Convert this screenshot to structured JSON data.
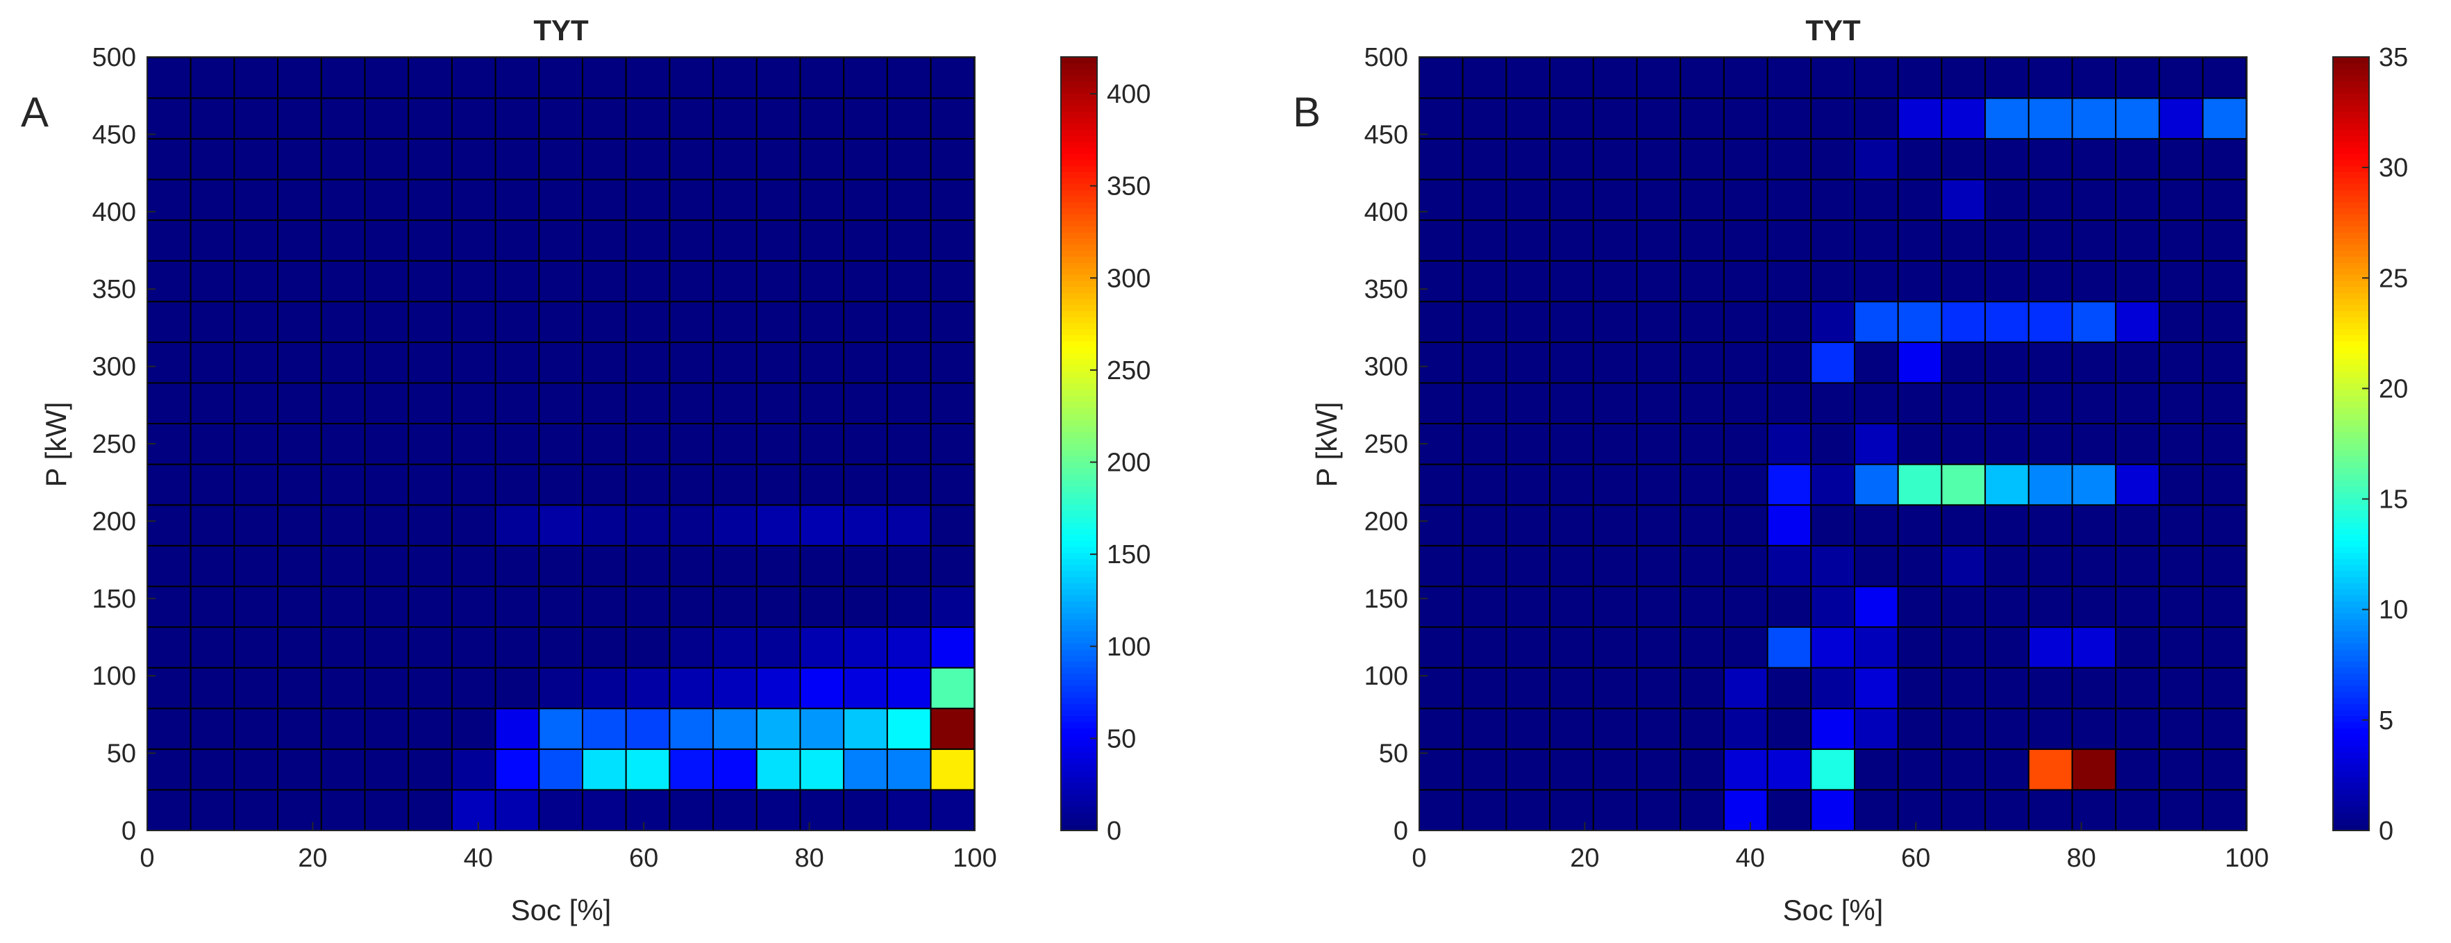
{
  "chart_data": [
    {
      "type": "heatmap",
      "panel_label": "A",
      "title": "TYT",
      "xlabel": "Soc [%]",
      "ylabel": "P [kW]",
      "xlim": [
        0,
        100
      ],
      "ylim": [
        0,
        500
      ],
      "xticks": [
        0,
        20,
        40,
        60,
        80,
        100
      ],
      "yticks": [
        0,
        50,
        100,
        150,
        200,
        250,
        300,
        350,
        400,
        450,
        500
      ],
      "x_bin_width": 5.26,
      "y_bin_width": 26.3,
      "rows": 19,
      "cols": 19,
      "colorbar": {
        "colormap": "jet",
        "min": 0,
        "max": 420,
        "ticks": [
          0,
          50,
          100,
          150,
          200,
          250,
          300,
          350,
          400
        ]
      },
      "grid": true,
      "row_order": "bottom-to-top",
      "values": [
        [
          0,
          0,
          0,
          0,
          0,
          0,
          0,
          25,
          20,
          5,
          5,
          3,
          3,
          3,
          3,
          2,
          2,
          5,
          5
        ],
        [
          0,
          0,
          0,
          0,
          0,
          0,
          0,
          10,
          55,
          85,
          145,
          150,
          60,
          55,
          145,
          150,
          105,
          105,
          270
        ],
        [
          0,
          0,
          0,
          0,
          0,
          0,
          0,
          0,
          45,
          95,
          85,
          80,
          95,
          105,
          125,
          115,
          135,
          155,
          420
        ],
        [
          0,
          0,
          0,
          0,
          0,
          0,
          0,
          0,
          0,
          5,
          10,
          15,
          20,
          25,
          35,
          50,
          40,
          45,
          190
        ],
        [
          0,
          0,
          0,
          0,
          0,
          0,
          0,
          0,
          0,
          0,
          0,
          0,
          5,
          10,
          10,
          20,
          25,
          30,
          50
        ],
        [
          0,
          0,
          0,
          0,
          0,
          0,
          0,
          0,
          0,
          0,
          0,
          0,
          0,
          0,
          0,
          0,
          0,
          3,
          8
        ],
        [
          0,
          0,
          0,
          0,
          0,
          0,
          0,
          0,
          0,
          0,
          0,
          0,
          0,
          0,
          0,
          0,
          0,
          0,
          0
        ],
        [
          0,
          0,
          0,
          0,
          0,
          0,
          0,
          0,
          10,
          15,
          8,
          5,
          5,
          12,
          18,
          20,
          18,
          15,
          0
        ],
        [
          0,
          0,
          0,
          0,
          0,
          0,
          0,
          0,
          0,
          0,
          0,
          0,
          0,
          0,
          0,
          0,
          0,
          0,
          0
        ],
        [
          0,
          0,
          0,
          0,
          0,
          0,
          0,
          0,
          0,
          0,
          0,
          0,
          0,
          0,
          0,
          0,
          0,
          0,
          0
        ],
        [
          0,
          0,
          0,
          0,
          0,
          0,
          0,
          0,
          0,
          0,
          0,
          0,
          0,
          0,
          0,
          0,
          0,
          0,
          0
        ],
        [
          0,
          0,
          0,
          0,
          0,
          0,
          0,
          0,
          0,
          0,
          0,
          0,
          0,
          0,
          0,
          0,
          0,
          0,
          0
        ],
        [
          0,
          0,
          0,
          0,
          0,
          0,
          0,
          0,
          0,
          0,
          0,
          0,
          0,
          0,
          0,
          0,
          0,
          0,
          0
        ],
        [
          0,
          0,
          0,
          0,
          0,
          0,
          0,
          0,
          0,
          0,
          0,
          0,
          0,
          0,
          0,
          0,
          0,
          0,
          0
        ],
        [
          0,
          0,
          0,
          0,
          0,
          0,
          0,
          0,
          0,
          0,
          0,
          0,
          0,
          0,
          0,
          0,
          0,
          0,
          0
        ],
        [
          0,
          0,
          0,
          0,
          0,
          0,
          0,
          0,
          0,
          0,
          0,
          0,
          0,
          0,
          0,
          0,
          0,
          0,
          0
        ],
        [
          0,
          0,
          0,
          0,
          0,
          0,
          0,
          0,
          0,
          0,
          0,
          0,
          0,
          0,
          0,
          0,
          0,
          0,
          0
        ],
        [
          0,
          0,
          0,
          0,
          0,
          0,
          0,
          0,
          0,
          0,
          0,
          0,
          0,
          0,
          0,
          0,
          0,
          0,
          0
        ],
        [
          0,
          0,
          0,
          0,
          0,
          0,
          0,
          0,
          0,
          0,
          0,
          0,
          0,
          0,
          0,
          0,
          0,
          0,
          0
        ]
      ]
    },
    {
      "type": "heatmap",
      "panel_label": "B",
      "title": "TYT",
      "xlabel": "Soc [%]",
      "ylabel": "P [kW]",
      "xlim": [
        0,
        100
      ],
      "ylim": [
        0,
        500
      ],
      "xticks": [
        0,
        20,
        40,
        60,
        80,
        100
      ],
      "yticks": [
        0,
        50,
        100,
        150,
        200,
        250,
        300,
        350,
        400,
        450,
        500
      ],
      "x_bin_width": 5.26,
      "y_bin_width": 26.3,
      "rows": 19,
      "cols": 19,
      "colorbar": {
        "colormap": "jet",
        "min": 0,
        "max": 35,
        "ticks": [
          0,
          5,
          10,
          15,
          20,
          25,
          30,
          35
        ]
      },
      "grid": true,
      "row_order": "bottom-to-top",
      "values": [
        [
          0,
          0,
          0,
          0,
          0,
          0,
          0,
          4,
          0,
          4,
          0,
          0,
          0,
          0,
          0,
          0,
          0,
          0,
          0
        ],
        [
          0,
          0,
          0,
          0,
          0,
          0,
          0,
          3,
          3,
          14,
          0,
          0,
          0,
          0,
          28,
          35,
          0,
          0,
          0
        ],
        [
          0,
          0,
          0,
          0,
          0,
          0,
          0,
          1,
          0,
          4,
          2,
          0,
          0,
          0,
          0,
          0,
          0,
          0,
          0
        ],
        [
          0,
          0,
          0,
          0,
          0,
          0,
          0,
          2,
          0,
          1,
          3,
          0,
          0,
          0,
          0,
          0,
          0,
          0,
          0
        ],
        [
          0,
          0,
          0,
          0,
          0,
          0,
          0,
          0,
          7,
          3,
          2,
          0,
          0,
          0,
          3,
          3,
          0,
          0,
          0
        ],
        [
          0,
          0,
          0,
          0,
          0,
          0,
          0,
          0,
          0,
          1,
          4,
          0,
          0,
          0,
          0,
          0,
          0,
          0,
          0
        ],
        [
          0,
          0,
          0,
          0,
          0,
          0,
          0,
          0,
          1,
          1,
          0,
          0,
          1,
          0,
          0,
          0,
          0,
          0,
          0
        ],
        [
          0,
          0,
          0,
          0,
          0,
          0,
          0,
          0,
          4,
          0,
          0,
          0,
          0,
          0,
          0,
          0,
          0,
          0,
          0
        ],
        [
          0,
          0,
          0,
          0,
          0,
          0,
          0,
          0,
          5,
          1,
          8,
          15,
          16,
          11,
          9,
          9,
          3,
          0,
          0
        ],
        [
          0,
          0,
          0,
          0,
          0,
          0,
          0,
          0,
          1,
          0,
          2,
          0,
          0,
          0,
          0,
          0,
          0,
          0,
          0
        ],
        [
          0,
          0,
          0,
          0,
          0,
          0,
          0,
          0,
          0,
          0,
          0,
          0,
          0,
          0,
          0,
          0,
          0,
          0,
          0
        ],
        [
          0,
          0,
          0,
          0,
          0,
          0,
          0,
          0,
          0,
          6,
          0,
          4,
          0,
          0,
          0,
          0,
          0,
          0,
          0
        ],
        [
          0,
          0,
          0,
          0,
          0,
          0,
          0,
          0,
          0,
          1,
          7,
          7,
          6,
          6,
          6,
          7,
          3,
          0,
          0
        ],
        [
          0,
          0,
          0,
          0,
          0,
          0,
          0,
          0,
          0,
          0,
          0,
          0,
          0,
          0,
          0,
          0,
          0,
          0,
          0
        ],
        [
          0,
          0,
          0,
          0,
          0,
          0,
          0,
          0,
          0,
          0,
          0,
          0,
          0,
          0,
          0,
          0,
          0,
          0,
          0
        ],
        [
          0,
          0,
          0,
          0,
          0,
          0,
          0,
          0,
          0,
          0,
          0,
          0,
          2,
          0,
          0,
          0,
          0,
          0,
          0
        ],
        [
          0,
          0,
          0,
          0,
          0,
          0,
          0,
          0,
          0,
          0,
          1,
          0,
          0,
          0,
          0,
          0,
          0,
          0,
          0
        ],
        [
          0,
          0,
          0,
          0,
          0,
          0,
          0,
          0,
          0,
          0,
          0,
          3,
          3,
          8,
          8,
          8,
          8,
          3,
          8
        ],
        [
          0,
          0,
          0,
          0,
          0,
          0,
          0,
          0,
          0,
          0,
          0,
          0,
          0,
          0,
          0,
          0,
          0,
          0,
          0
        ]
      ]
    }
  ]
}
